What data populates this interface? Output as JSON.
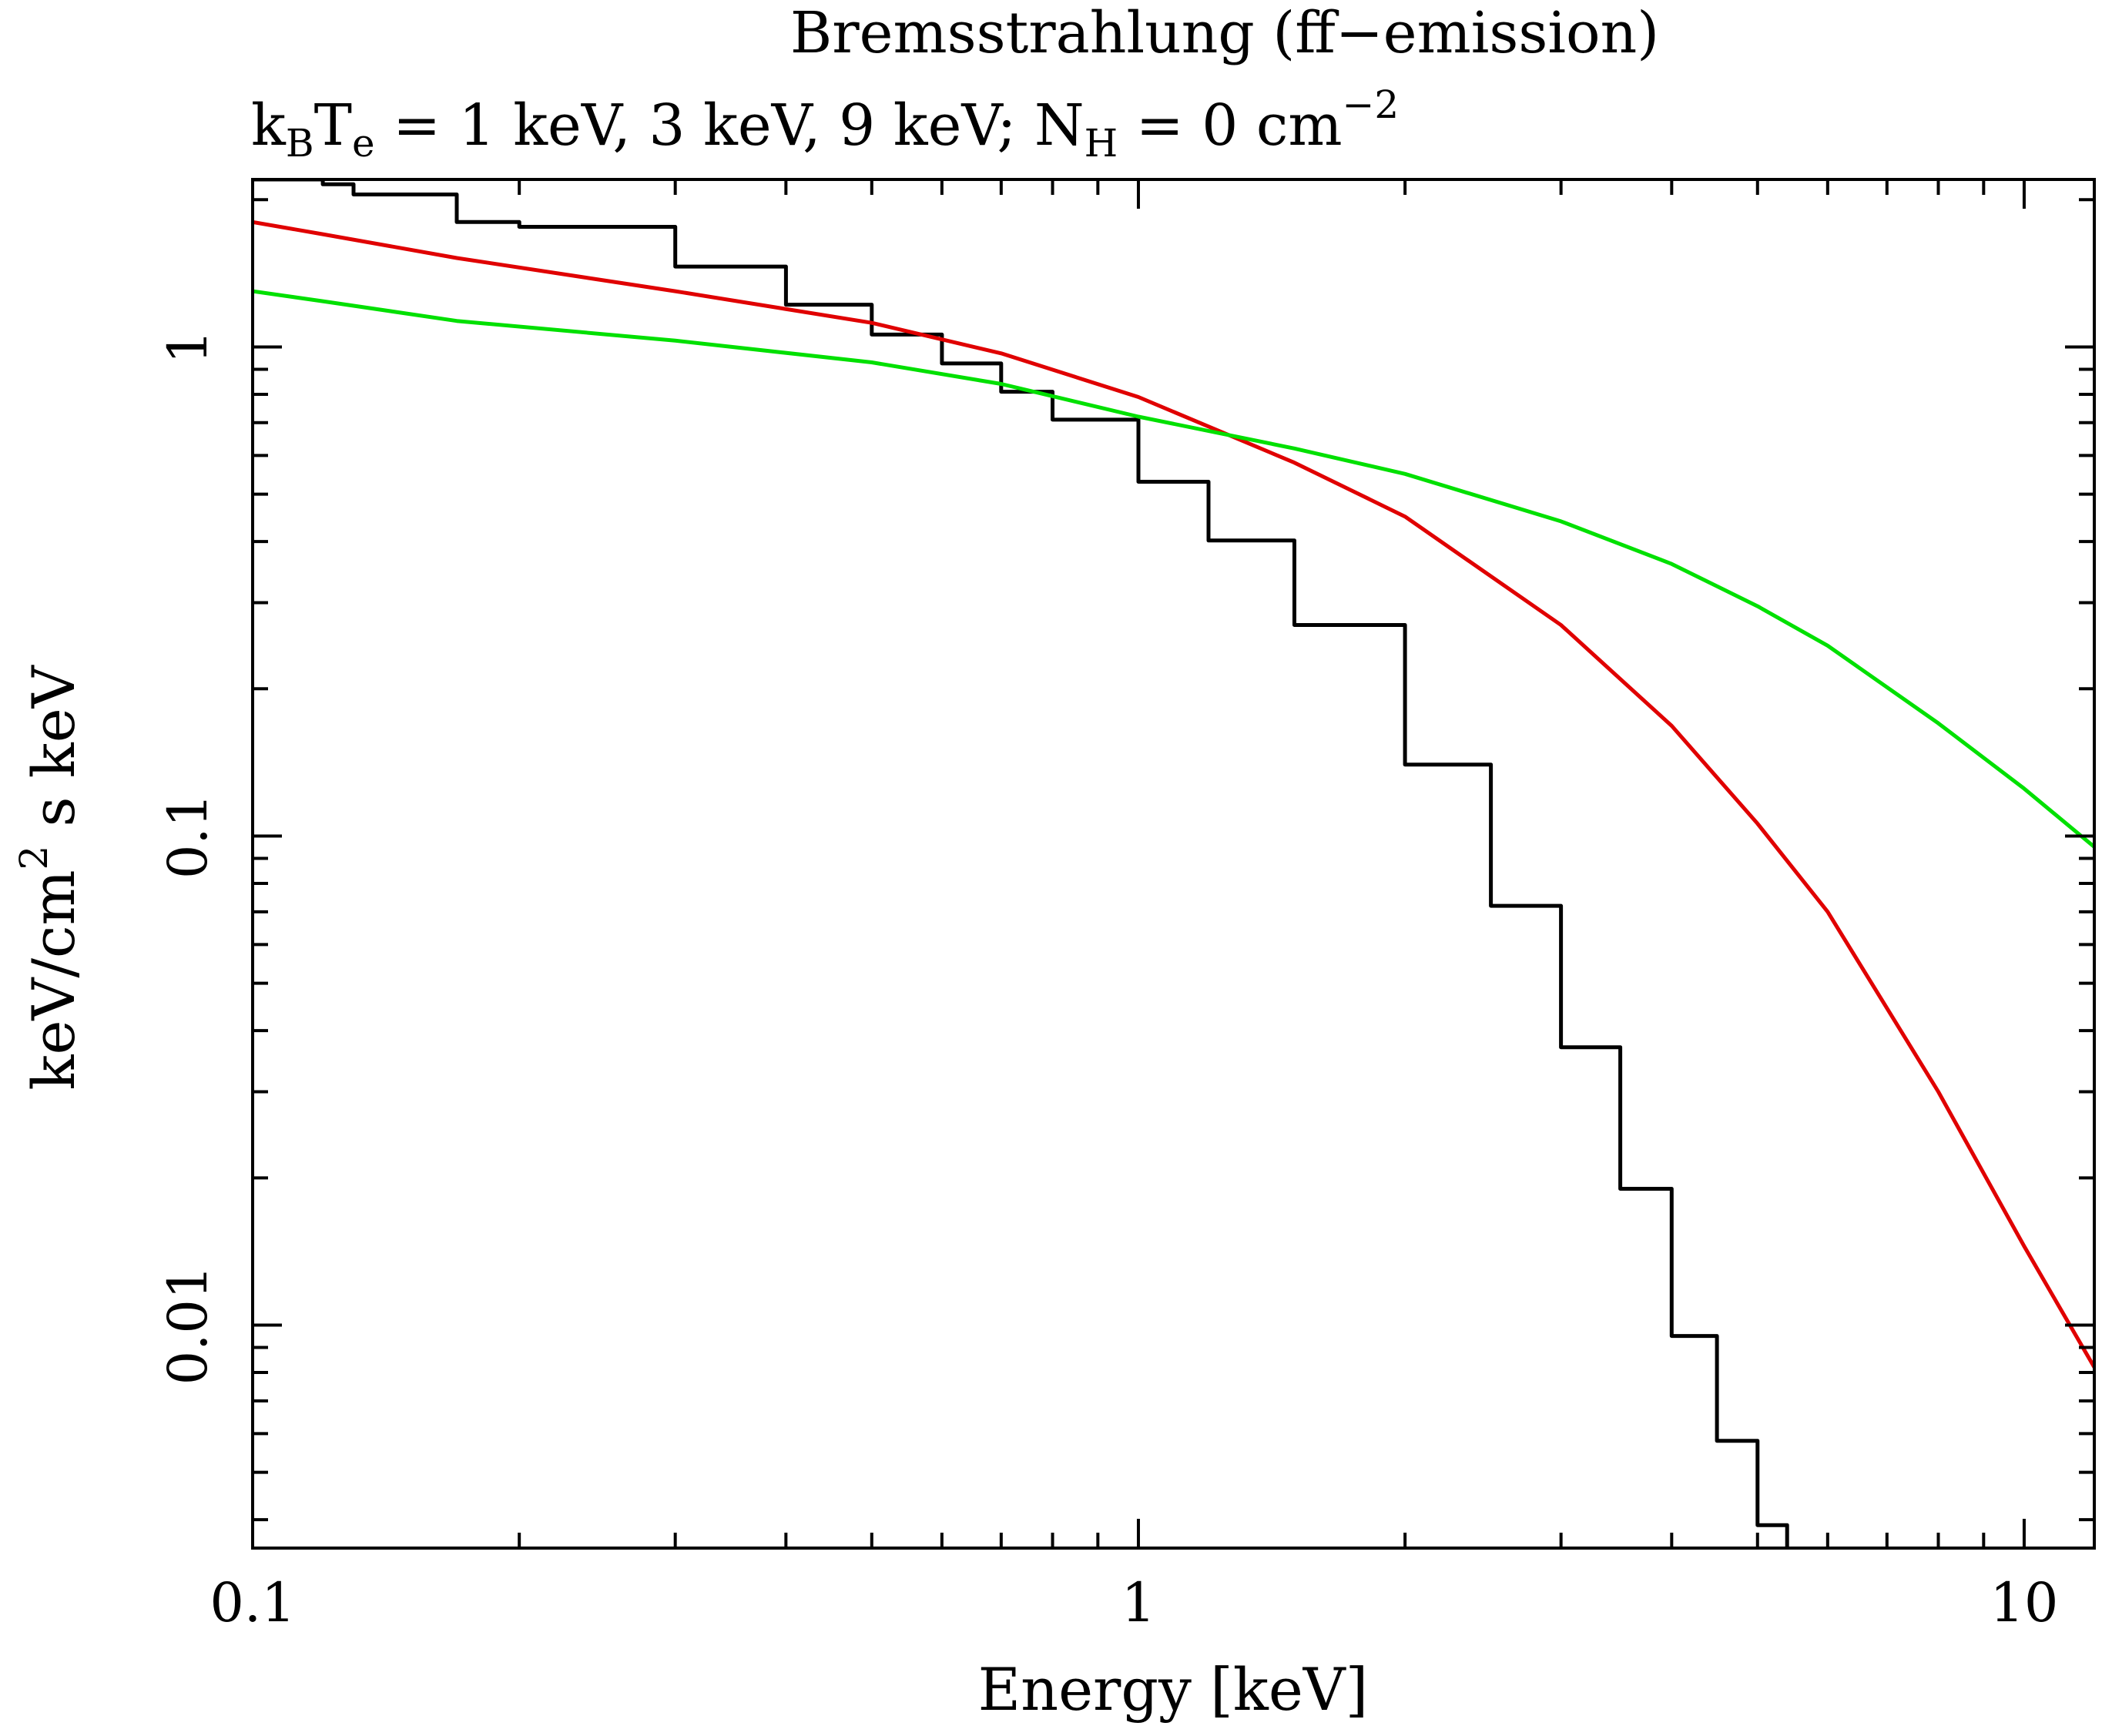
{
  "chart_data": {
    "type": "line",
    "title": "Bremsstrahlung (ff−emission)",
    "subtitle": {
      "parts": [
        {
          "text": "k",
          "style": "normal"
        },
        {
          "text": "B",
          "style": "sub"
        },
        {
          "text": "T",
          "style": "normal"
        },
        {
          "text": "e",
          "style": "sub"
        },
        {
          "text": " = 1 keV, 3 keV, 9 keV; N",
          "style": "normal"
        },
        {
          "text": "H",
          "style": "sub"
        },
        {
          "text": " = 0 cm",
          "style": "normal"
        },
        {
          "text": "−2",
          "style": "sup"
        }
      ]
    },
    "xlabel": "Energy [keV]",
    "ylabel": {
      "parts": [
        {
          "text": "keV/cm",
          "style": "normal"
        },
        {
          "text": "2",
          "style": "sup"
        },
        {
          "text": " s keV",
          "style": "normal"
        }
      ]
    },
    "x_scale": "log",
    "y_scale": "log",
    "xlim": [
      0.1,
      12
    ],
    "ylim": [
      0.0035,
      2.2
    ],
    "x_ticks": [
      {
        "value": 0.1,
        "label": "0.1"
      },
      {
        "value": 1,
        "label": "1"
      },
      {
        "value": 10,
        "label": "10"
      }
    ],
    "y_ticks": [
      {
        "value": 0.01,
        "label": "0.01"
      },
      {
        "value": 0.1,
        "label": "0.1"
      },
      {
        "value": 1,
        "label": "1"
      }
    ],
    "grid": false,
    "legend": "none",
    "series": [
      {
        "color": "#000000",
        "style": "step",
        "x": [
          0.1,
          0.111,
          0.12,
          0.13,
          0.14,
          0.16,
          0.17,
          0.2,
          0.3,
          0.4,
          0.5,
          0.6,
          0.7,
          0.8,
          1.0,
          1.2,
          1.5,
          2.0,
          2.5,
          3.0,
          3.5,
          4.0,
          4.5,
          5.0,
          5.4
        ],
        "y": [
          2.2,
          2.2,
          2.15,
          2.05,
          2.05,
          2.05,
          1.8,
          1.76,
          1.46,
          1.22,
          1.06,
          0.925,
          0.81,
          0.71,
          0.53,
          0.402,
          0.27,
          0.14,
          0.072,
          0.037,
          0.019,
          0.0095,
          0.0058,
          0.0039,
          0.0035
        ]
      },
      {
        "color": "#e00000",
        "style": "line",
        "x": [
          0.1,
          0.12,
          0.17,
          0.3,
          0.5,
          0.7,
          1.0,
          1.5,
          2.0,
          3.0,
          4.0,
          5.0,
          6.0,
          8.0,
          10.0,
          12.0
        ],
        "y": [
          1.8,
          1.7,
          1.52,
          1.3,
          1.12,
          0.97,
          0.79,
          0.58,
          0.45,
          0.27,
          0.168,
          0.106,
          0.07,
          0.03,
          0.0145,
          0.0082
        ]
      },
      {
        "color": "#00e000",
        "style": "line",
        "x": [
          0.1,
          0.12,
          0.17,
          0.3,
          0.5,
          0.7,
          1.0,
          1.5,
          2.0,
          3.0,
          4.0,
          5.0,
          6.0,
          8.0,
          10.0,
          12.0
        ],
        "y": [
          1.3,
          1.24,
          1.13,
          1.03,
          0.93,
          0.84,
          0.72,
          0.62,
          0.55,
          0.44,
          0.36,
          0.295,
          0.245,
          0.17,
          0.125,
          0.095
        ]
      }
    ]
  }
}
